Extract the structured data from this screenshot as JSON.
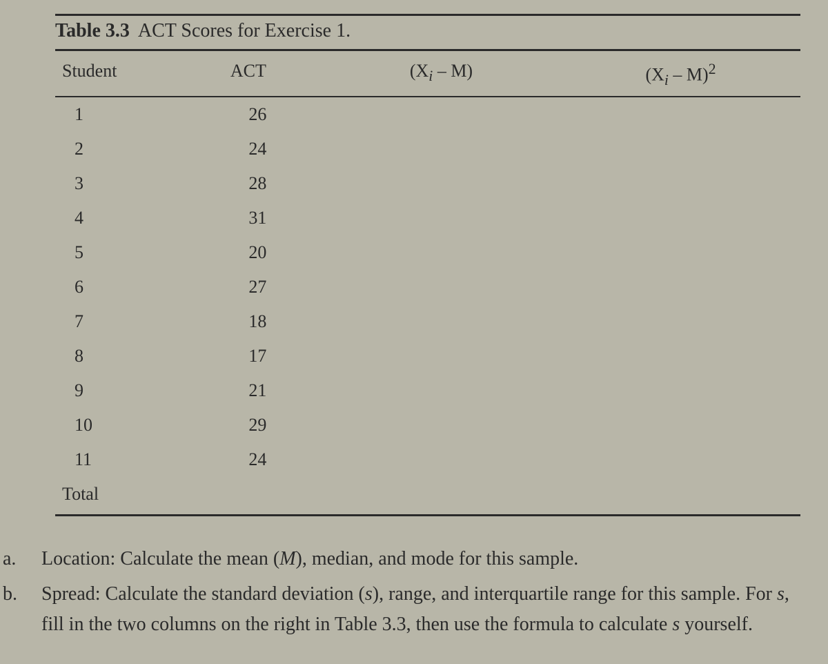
{
  "table": {
    "title_label": "Table 3.3",
    "title_text": "ACT Scores for Exercise 1.",
    "columns": {
      "student": "Student",
      "act": "ACT",
      "dev": "(X",
      "dev_sub": "i",
      "dev_tail": " – M)",
      "dev2": "(X",
      "dev2_sub": "i",
      "dev2_tail": " – M)",
      "dev2_sup": "2"
    },
    "rows": [
      {
        "student": "1",
        "act": "26"
      },
      {
        "student": "2",
        "act": "24"
      },
      {
        "student": "3",
        "act": "28"
      },
      {
        "student": "4",
        "act": "31"
      },
      {
        "student": "5",
        "act": "20"
      },
      {
        "student": "6",
        "act": "27"
      },
      {
        "student": "7",
        "act": "18"
      },
      {
        "student": "8",
        "act": "17"
      },
      {
        "student": "9",
        "act": "21"
      },
      {
        "student": "10",
        "act": "29"
      },
      {
        "student": "11",
        "act": "24"
      }
    ],
    "total_label": "Total"
  },
  "questions": {
    "a": {
      "letter": "a.",
      "text_pre": "Location: Calculate the mean (",
      "M": "M",
      "text_post": "), median, and mode for this sample."
    },
    "b": {
      "letter": "b.",
      "text_pre": "Spread: Calculate the standard deviation (",
      "s": "s",
      "text_mid": "), range, and interquartile range for this sample. For ",
      "s2": "s",
      "text_mid2": ", fill in the two columns on the right in Table 3.3, then use the formula to calculate ",
      "s3": "s",
      "text_post": " yourself."
    }
  },
  "style": {
    "background_color": "#b8b6a8",
    "text_color": "#2a2a2a",
    "rule_color": "#2a2a2a",
    "font_family": "Georgia, Times New Roman, serif",
    "title_fontsize": 28,
    "header_fontsize": 26,
    "body_fontsize": 26,
    "question_fontsize": 28
  }
}
